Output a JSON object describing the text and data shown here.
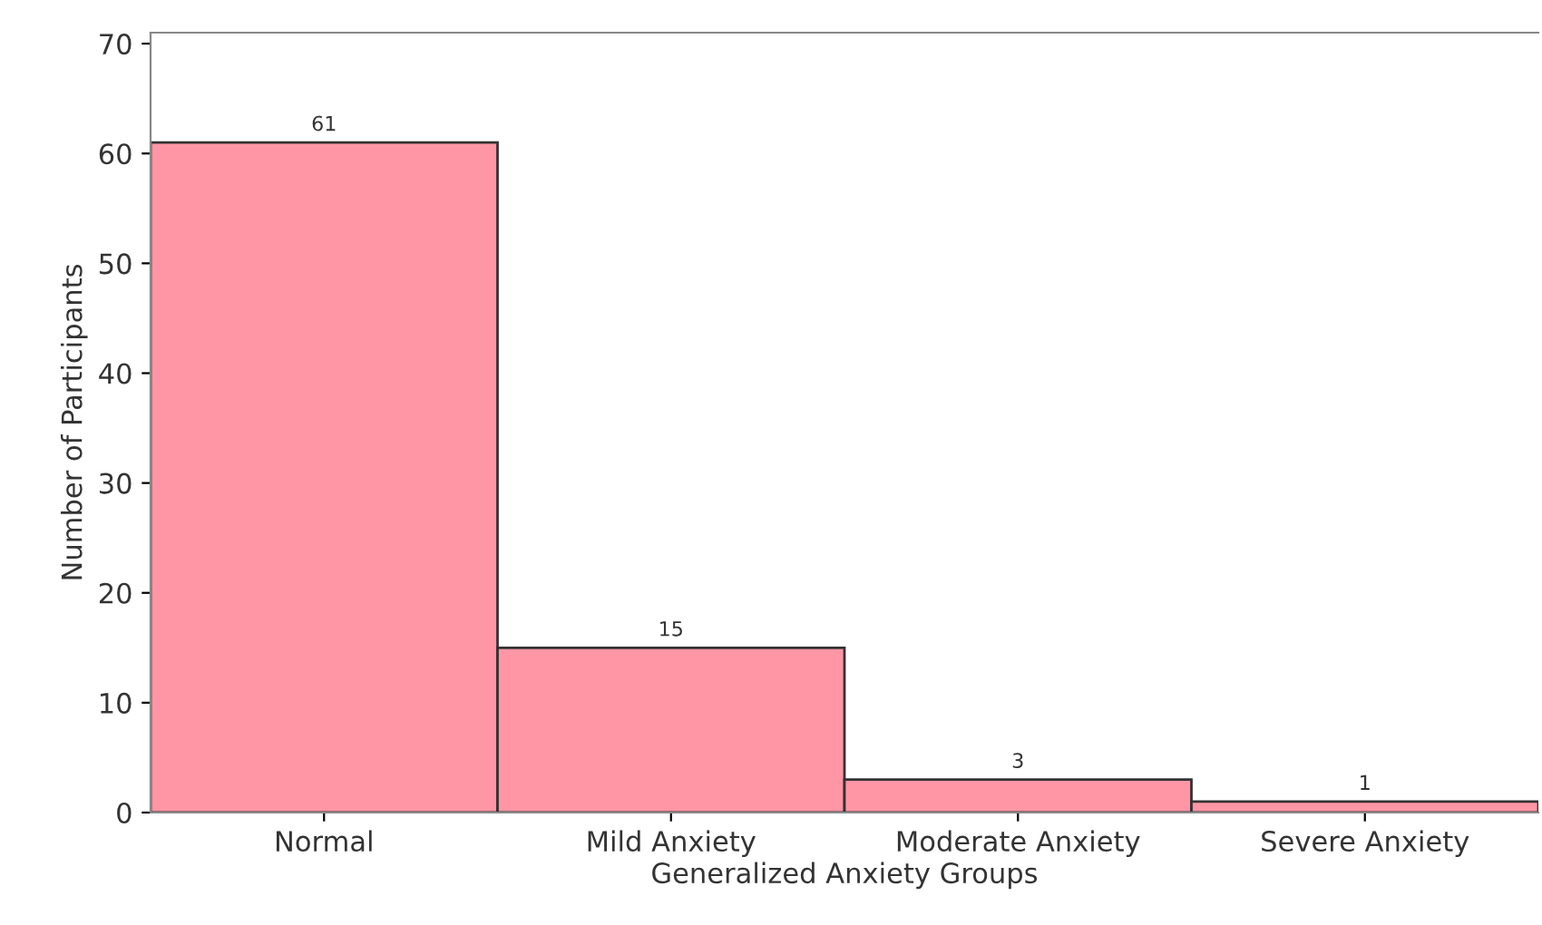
{
  "chart_data": {
    "type": "bar",
    "xlabel": "Generalized Anxiety Groups",
    "ylabel": "Number of Participants",
    "categories": [
      "Normal",
      "Mild Anxiety",
      "Moderate Anxiety",
      "Severe Anxiety"
    ],
    "values": [
      61,
      15,
      3,
      1
    ],
    "color": "#ff96a5",
    "ylim": [
      0,
      71
    ],
    "yticks": [
      0,
      10,
      20,
      30,
      40,
      50,
      60,
      70
    ],
    "data_labels": true,
    "grid": false,
    "legend": false
  }
}
